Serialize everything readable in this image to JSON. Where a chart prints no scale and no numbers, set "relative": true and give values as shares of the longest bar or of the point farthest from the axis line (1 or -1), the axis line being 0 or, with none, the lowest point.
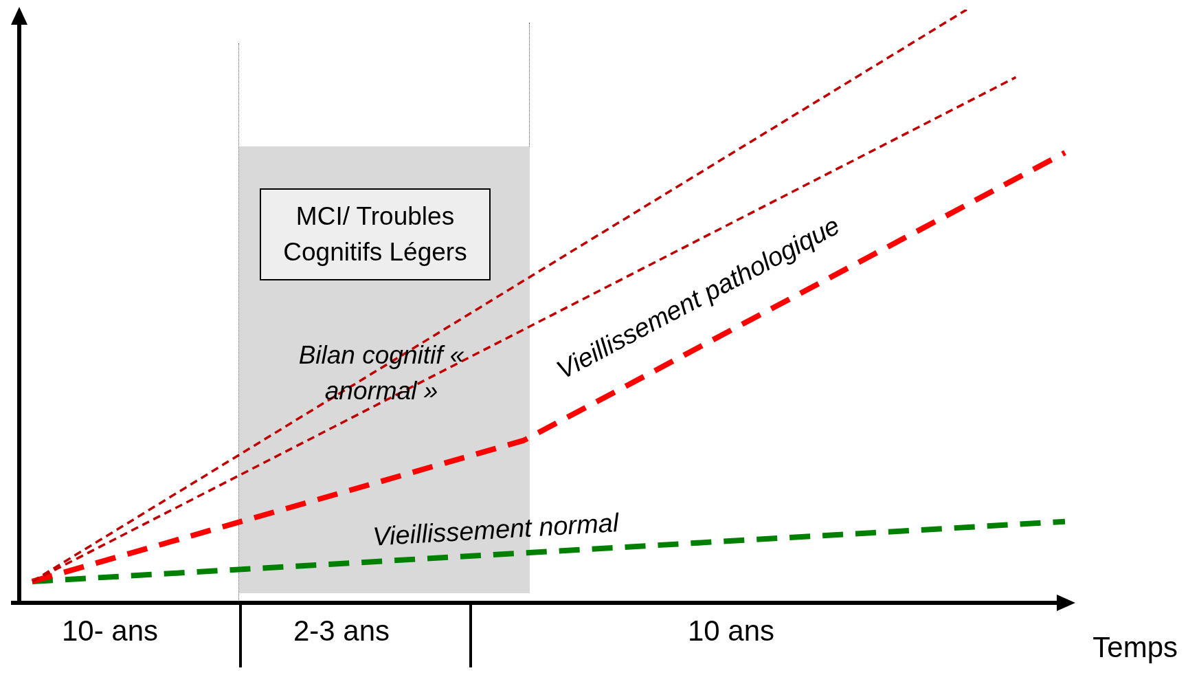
{
  "chart_data": {
    "type": "line",
    "relative": true,
    "xlabel": "Temps",
    "legend": false,
    "marker": "none",
    "line_style": "dashed",
    "tick_labels": false,
    "categories": [
      null,
      null,
      null,
      null,
      null,
      null,
      null,
      null,
      null,
      null,
      null,
      null,
      null,
      null,
      null,
      null,
      null,
      null,
      null,
      null,
      null,
      null
    ],
    "series": [
      {
        "color": "#c00000",
        "values": [
          0.036,
          null,
          null,
          null,
          null,
          null,
          null,
          null,
          null,
          null,
          null,
          null,
          null,
          null,
          null,
          null,
          null,
          null,
          null,
          1,
          null,
          null
        ]
      },
      {
        "color": "#c00000",
        "values": [
          0.036,
          null,
          null,
          null,
          null,
          null,
          null,
          null,
          null,
          null,
          null,
          null,
          null,
          null,
          null,
          null,
          null,
          null,
          null,
          null,
          0.886,
          null
        ]
      },
      {
        "name": "Vieillissement pathologique",
        "color": "#ff0000",
        "values": [
          0.036,
          null,
          null,
          null,
          null,
          null,
          null,
          null,
          null,
          null,
          0.274,
          null,
          null,
          null,
          null,
          null,
          null,
          null,
          null,
          null,
          null,
          0.759
        ]
      },
      {
        "name": "Vieillissement normal",
        "color": "#008000",
        "values": [
          0.036,
          null,
          null,
          null,
          null,
          null,
          null,
          null,
          null,
          null,
          null,
          null,
          null,
          null,
          null,
          null,
          null,
          null,
          null,
          null,
          null,
          0.137
        ]
      }
    ],
    "annotations": [
      "MCI/ Troubles Cognitifs Légers",
      "Bilan cognitif « anormal »",
      "10- ans",
      "2-3 ans",
      "10 ans"
    ]
  }
}
